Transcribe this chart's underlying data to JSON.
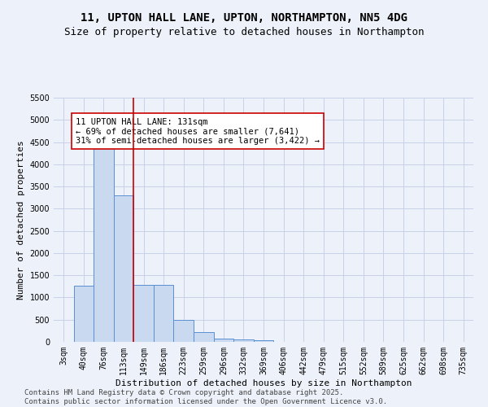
{
  "title": "11, UPTON HALL LANE, UPTON, NORTHAMPTON, NN5 4DG",
  "subtitle": "Size of property relative to detached houses in Northampton",
  "xlabel": "Distribution of detached houses by size in Northampton",
  "ylabel": "Number of detached properties",
  "categories": [
    "3sqm",
    "40sqm",
    "76sqm",
    "113sqm",
    "149sqm",
    "186sqm",
    "223sqm",
    "259sqm",
    "296sqm",
    "332sqm",
    "369sqm",
    "406sqm",
    "442sqm",
    "479sqm",
    "515sqm",
    "552sqm",
    "589sqm",
    "625sqm",
    "662sqm",
    "698sqm",
    "735sqm"
  ],
  "bar_values": [
    0,
    1270,
    4380,
    3300,
    1280,
    1280,
    500,
    220,
    80,
    50,
    30,
    0,
    0,
    0,
    0,
    0,
    0,
    0,
    0,
    0,
    0
  ],
  "bar_color": "#c9d9f0",
  "bar_edge_color": "#5b8fd4",
  "red_line_x": 3.5,
  "marker_label": "11 UPTON HALL LANE: 131sqm",
  "annotation_line1": "← 69% of detached houses are smaller (7,641)",
  "annotation_line2": "31% of semi-detached houses are larger (3,422) →",
  "red_line_color": "#cc0000",
  "annotation_box_edge": "#cc0000",
  "ylim_max": 5500,
  "yticks": [
    0,
    500,
    1000,
    1500,
    2000,
    2500,
    3000,
    3500,
    4000,
    4500,
    5000,
    5500
  ],
  "bg_color": "#edf1f9",
  "grid_color": "#c8d0e8",
  "footer_line1": "Contains HM Land Registry data © Crown copyright and database right 2025.",
  "footer_line2": "Contains public sector information licensed under the Open Government Licence v3.0.",
  "title_fontsize": 10,
  "subtitle_fontsize": 9,
  "axis_label_fontsize": 8,
  "tick_fontsize": 7,
  "footer_fontsize": 6.5,
  "ann_fontsize": 7.5
}
